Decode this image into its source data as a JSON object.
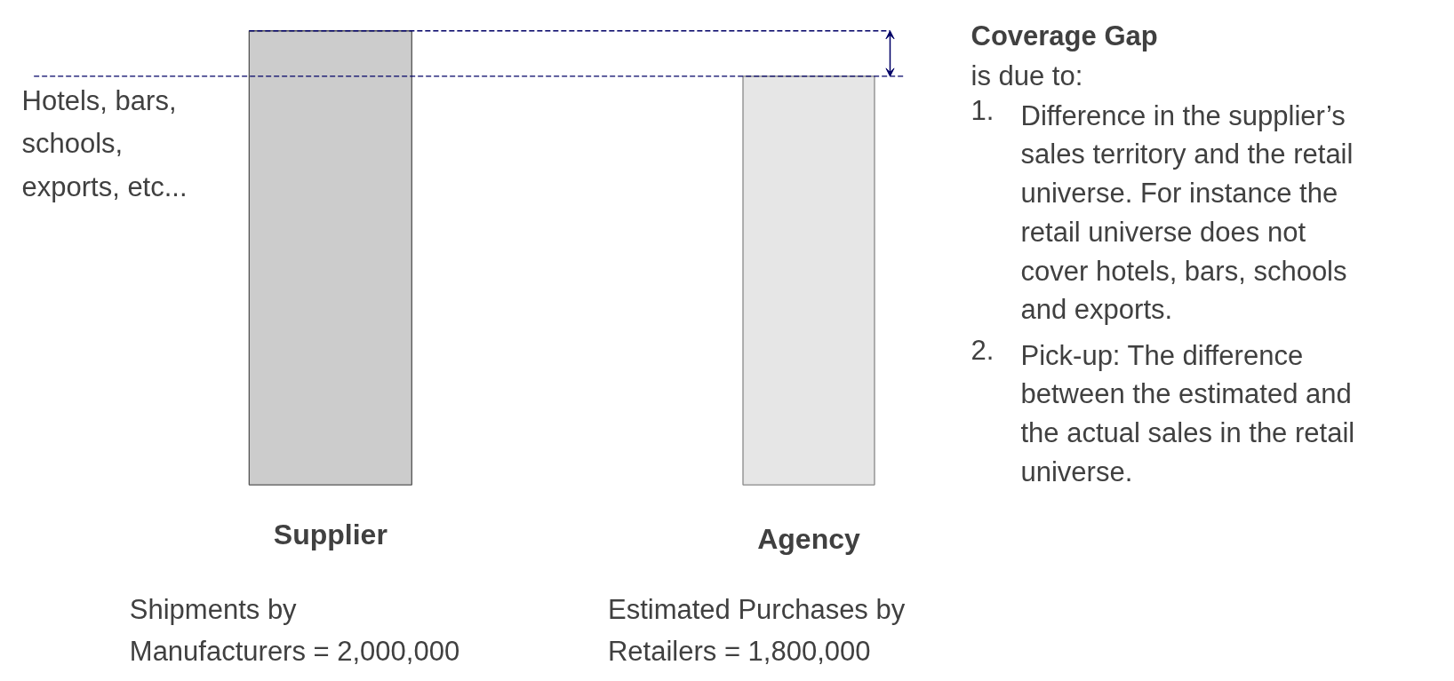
{
  "chart_data": {
    "type": "bar",
    "categories": [
      "Supplier",
      "Agency"
    ],
    "values": [
      2000000,
      1800000
    ],
    "colors": [
      "#cccccc",
      "#e6e6e6"
    ],
    "value_labels": [
      "Shipments by\nManufacturers = 2,000,000",
      "Estimated Purchases by\nRetailers = 1,800,000"
    ],
    "ref_lines": [
      {
        "axis": "y",
        "value": 2000000,
        "label": null,
        "color": "#000066",
        "line_style": "dashed"
      },
      {
        "axis": "y",
        "value": 1800000,
        "label": null,
        "color": "#000066",
        "line_style": "dashed"
      }
    ],
    "annotations": [
      "Hotels, bars,\nschools,\nexports, etc...",
      "Coverage Gap",
      "is due to:",
      "1. Difference in the supplier’s\nsales territory and the retail\nuniverse. For instance the\nretail universe does not\ncover hotels, bars, schools\nand exports.",
      "2. Pick-up: The difference\nbetween the estimated and\nthe actual sales in the retail\nuniverse."
    ],
    "grid": false
  }
}
